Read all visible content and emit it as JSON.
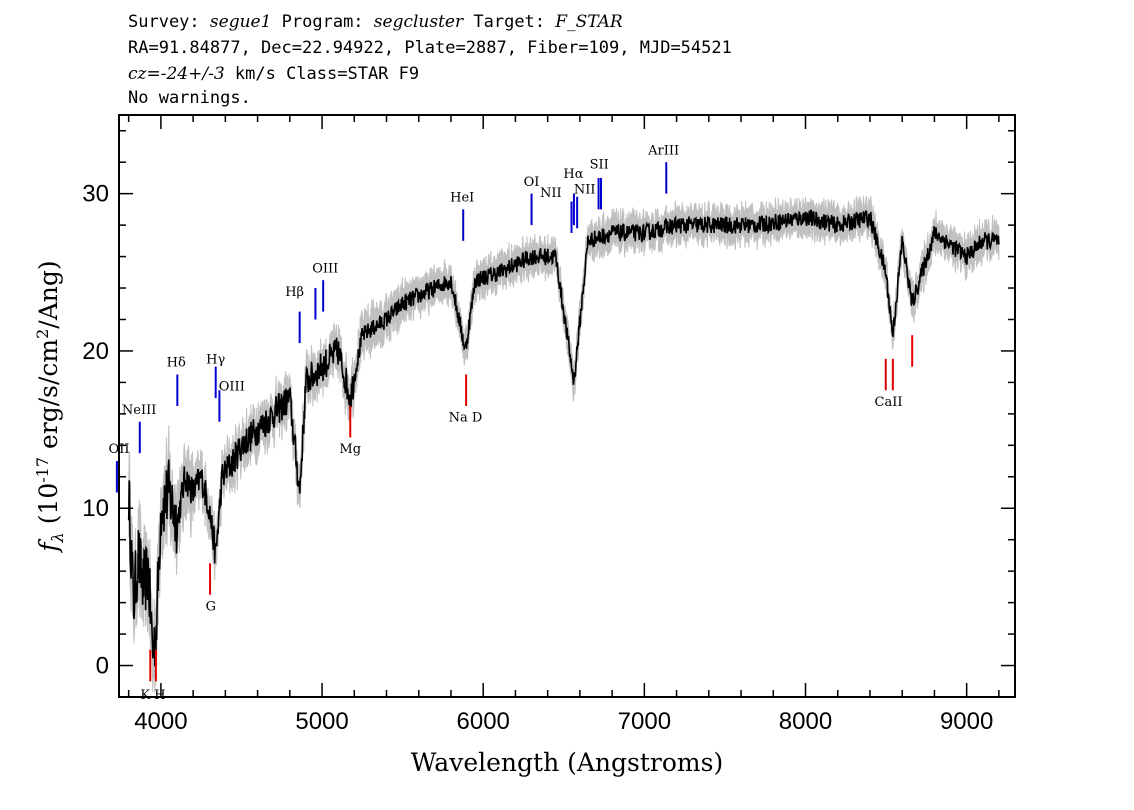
{
  "header": {
    "survey_label": "Survey:",
    "survey": "segue1",
    "program_label": "Program:",
    "program": "segcluster",
    "target_label": "Target:",
    "target": "F_STAR",
    "line2": "RA=91.84877, Dec=22.94922, Plate=2887, Fiber=109, MJD=54521",
    "cz_label": "cz=",
    "cz_value": "-24+/-3",
    "cz_rest": " km/s Class=STAR F9",
    "warnings": "No warnings."
  },
  "chart_data": {
    "type": "line",
    "xlabel": "Wavelength (Angstroms)",
    "ylabel": "f_λ (10^-17 erg/s/cm²/Ang)",
    "xlim": [
      3740,
      9300
    ],
    "ylim": [
      -2,
      35
    ],
    "x_ticks": [
      4000,
      5000,
      6000,
      7000,
      8000,
      9000
    ],
    "y_ticks": [
      0,
      10,
      20,
      30
    ],
    "grid": false,
    "series": [
      {
        "role": "flux",
        "color": "#000000",
        "points": [
          [
            3750,
            13
          ],
          [
            3800,
            11
          ],
          [
            3830,
            4
          ],
          [
            3860,
            7
          ],
          [
            3890,
            5
          ],
          [
            3920,
            6
          ],
          [
            3950,
            1
          ],
          [
            3970,
            2
          ],
          [
            4000,
            10
          ],
          [
            4050,
            11
          ],
          [
            4100,
            9
          ],
          [
            4150,
            12
          ],
          [
            4200,
            11
          ],
          [
            4250,
            12
          ],
          [
            4300,
            10
          ],
          [
            4340,
            7
          ],
          [
            4380,
            12
          ],
          [
            4450,
            13
          ],
          [
            4500,
            14
          ],
          [
            4600,
            15
          ],
          [
            4700,
            16
          ],
          [
            4800,
            17
          ],
          [
            4861,
            11
          ],
          [
            4900,
            18
          ],
          [
            5000,
            19
          ],
          [
            5100,
            20
          ],
          [
            5175,
            17
          ],
          [
            5250,
            21
          ],
          [
            5400,
            22
          ],
          [
            5500,
            23
          ],
          [
            5700,
            24
          ],
          [
            5800,
            24.5
          ],
          [
            5890,
            20
          ],
          [
            5950,
            24.5
          ],
          [
            6100,
            25
          ],
          [
            6300,
            26
          ],
          [
            6450,
            26
          ],
          [
            6563,
            18
          ],
          [
            6650,
            27
          ],
          [
            6800,
            27.5
          ],
          [
            7000,
            27.5
          ],
          [
            7200,
            28
          ],
          [
            7500,
            28
          ],
          [
            7700,
            28
          ],
          [
            8000,
            28.5
          ],
          [
            8200,
            28
          ],
          [
            8400,
            28.5
          ],
          [
            8498,
            25
          ],
          [
            8542,
            21
          ],
          [
            8600,
            27
          ],
          [
            8662,
            23
          ],
          [
            8800,
            27.5
          ],
          [
            9000,
            26
          ],
          [
            9100,
            27
          ],
          [
            9200,
            27
          ]
        ]
      },
      {
        "role": "error",
        "color": "#c0c0c0"
      }
    ],
    "emission_lines": [
      {
        "label": "OII",
        "x": 3727,
        "y0": 11,
        "y1": 13,
        "lx": 3740,
        "ly": 13.5
      },
      {
        "label": "NeIII",
        "x": 3869,
        "y0": 13.5,
        "y1": 15.5,
        "lx": 3865,
        "ly": 16
      },
      {
        "label": "Hδ",
        "x": 4102,
        "y0": 16.5,
        "y1": 18.5,
        "lx": 4095,
        "ly": 19
      },
      {
        "label": "Hγ",
        "x": 4340,
        "y0": 17,
        "y1": 19,
        "lx": 4340,
        "ly": 19.2
      },
      {
        "label": "OIII",
        "x": 4363,
        "y0": 15.5,
        "y1": 17.5,
        "lx": 4440,
        "ly": 17.5
      },
      {
        "label": "Hβ",
        "x": 4861,
        "y0": 20.5,
        "y1": 22.5,
        "lx": 4830,
        "ly": 23.5
      },
      {
        "label": "OIII",
        "x": 4959,
        "y0": 22,
        "y1": 24,
        "lx": 5020,
        "ly": 25
      },
      {
        "label": "OIII",
        "x": 5007,
        "y0": 22.5,
        "y1": 24.5
      },
      {
        "label": "HeI",
        "x": 5876,
        "y0": 27,
        "y1": 29,
        "lx": 5870,
        "ly": 29.5
      },
      {
        "label": "OI",
        "x": 6300,
        "y0": 28,
        "y1": 30,
        "lx": 6300,
        "ly": 30.5
      },
      {
        "label": "NII",
        "x": 6548,
        "y0": 27.5,
        "y1": 29.5,
        "lx": 6420,
        "ly": 29.8
      },
      {
        "label": "Hα",
        "x": 6563,
        "y0": 28,
        "y1": 30,
        "lx": 6560,
        "ly": 31
      },
      {
        "label": "NII",
        "x": 6583,
        "y0": 27.8,
        "y1": 29.8,
        "lx": 6630,
        "ly": 30
      },
      {
        "label": "SII",
        "x": 6716,
        "y0": 29,
        "y1": 31,
        "lx": 6720,
        "ly": 31.6
      },
      {
        "label": "SII",
        "x": 6731,
        "y0": 29,
        "y1": 31
      },
      {
        "label": "ArIII",
        "x": 7136,
        "y0": 30,
        "y1": 32,
        "lx": 7120,
        "ly": 32.5
      }
    ],
    "absorption_lines": [
      {
        "label": "K",
        "x": 3934,
        "y0": -1,
        "y1": 1
      },
      {
        "label": "H",
        "x": 3969,
        "y0": -1,
        "y1": 1
      },
      {
        "label": "G",
        "x": 4305,
        "y0": 4.5,
        "y1": 6.5,
        "lx": 4310,
        "ly": 3.5
      },
      {
        "label": "Mg",
        "x": 5175,
        "y0": 14.5,
        "y1": 16.5,
        "lx": 5175,
        "ly": 13.5
      },
      {
        "label": "Na D",
        "x": 5894,
        "y0": 16.5,
        "y1": 18.5,
        "lx": 5890,
        "ly": 15.5
      },
      {
        "label": "CaII",
        "x": 8498,
        "y0": 17.5,
        "y1": 19.5,
        "lx": 8515,
        "ly": 16.5
      },
      {
        "label": "CaII",
        "x": 8542,
        "y0": 17.5,
        "y1": 19.5
      },
      {
        "label": "CaII",
        "x": 8662,
        "y0": 19,
        "y1": 21
      }
    ],
    "hk_label": "K H",
    "colors": {
      "emission": "#0000d0",
      "absorption": "#e00000"
    }
  }
}
